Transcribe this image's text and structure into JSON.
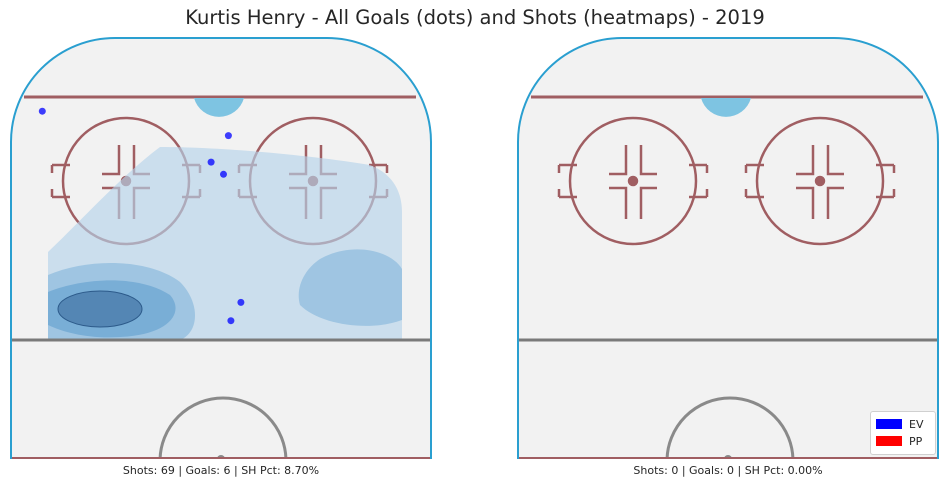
{
  "title": "Kurtis Henry - All Goals (dots) and Shots (heatmaps) - 2019",
  "colors": {
    "ev": "#0000ff",
    "pp": "#ff0000",
    "ice": "#f2f2f2",
    "boards": "#2a9fd0",
    "line": "#9e5a5e"
  },
  "panels": [
    {
      "name": "left",
      "stats_text": "Shots: 69 | Goals: 6 | SH Pct: 8.70%"
    },
    {
      "name": "right",
      "stats_text": "Shots: 0 | Goals: 0 | SH Pct: 0.00%"
    }
  ],
  "legend": {
    "placement": "bottom-right",
    "entries": [
      {
        "label": "EV",
        "color": "#0000ff"
      },
      {
        "label": "PP",
        "color": "#ff0000"
      }
    ]
  },
  "chart_data": {
    "type": "scatter",
    "title": "Kurtis Henry - All Goals (dots) and Shots (heatmaps) - 2019",
    "heatmap": "kernel density of shot locations (left panel only)",
    "panels": [
      {
        "shots": 69,
        "goals": 6,
        "sh_pct": "8.70%",
        "goals_xy": [
          {
            "x": 38.5,
            "y": -4.0,
            "strength": "EV"
          },
          {
            "x": 34.0,
            "y": -2.0,
            "strength": "EV"
          },
          {
            "x": 79.5,
            "y": -1.5,
            "strength": "EV"
          },
          {
            "x": 73.0,
            "y": 2.0,
            "strength": "EV"
          },
          {
            "x": 70.0,
            "y": -0.5,
            "strength": "EV"
          },
          {
            "x": 85.5,
            "y": 36.0,
            "strength": "EV"
          }
        ]
      },
      {
        "shots": 0,
        "goals": 0,
        "sh_pct": "0.00%",
        "goals_xy": []
      }
    ]
  }
}
